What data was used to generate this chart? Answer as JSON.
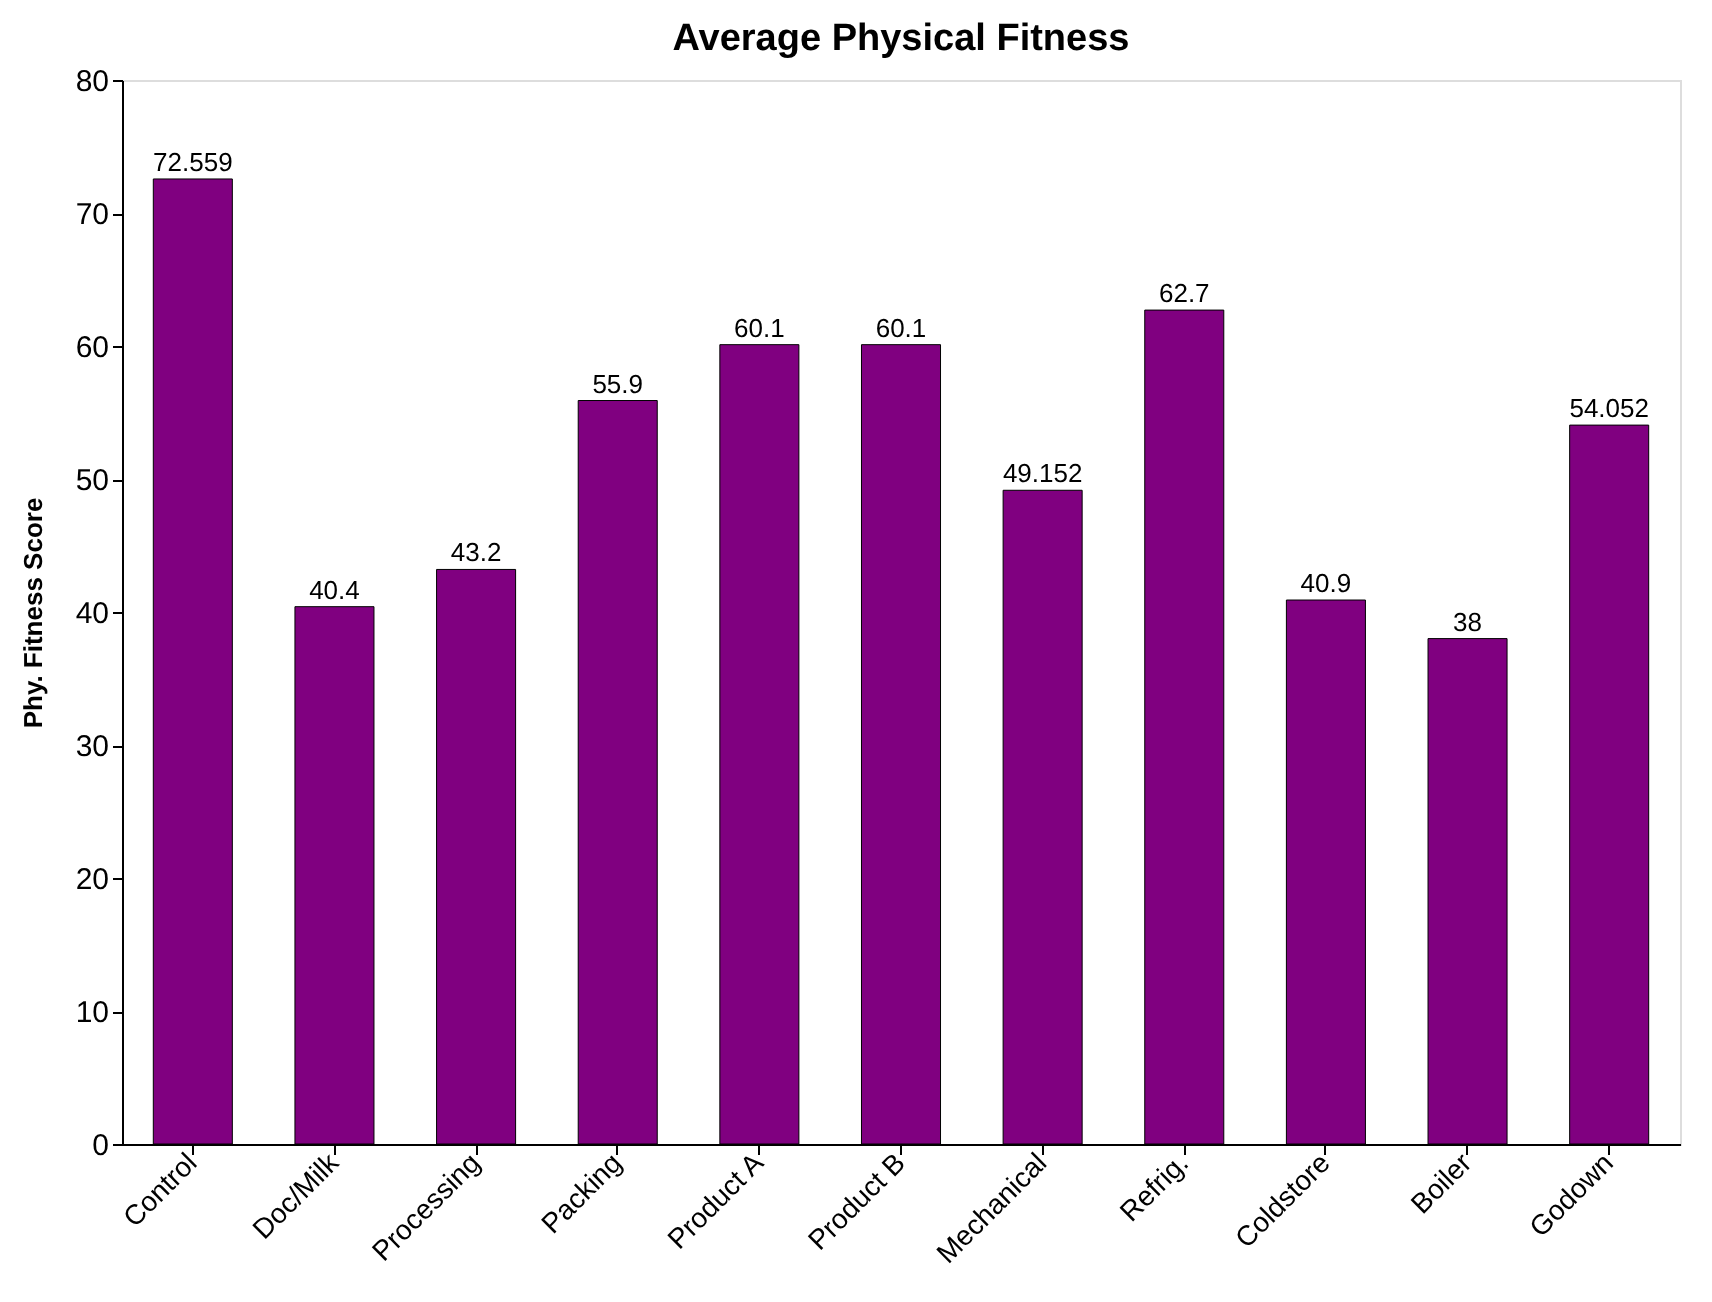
{
  "chart_data": {
    "type": "bar",
    "title": "Average Physical Fitness",
    "ylabel": "Phy. Fitness Score",
    "categories": [
      "Control",
      "Doc/Milk",
      "Processing",
      "Packing",
      "Product A",
      "Product B",
      "Mechanical",
      "Refrig.",
      "Coldstore",
      "Boiler",
      "Godown"
    ],
    "values": [
      72.559,
      40.4,
      43.2,
      55.9,
      60.1,
      60.1,
      49.152,
      62.7,
      40.9,
      38,
      54.052
    ],
    "color": "#800080",
    "ylim": [
      0,
      80
    ],
    "yticks": [
      0,
      10,
      20,
      30,
      40,
      50,
      60,
      70,
      80
    ],
    "grid": false,
    "data_labels": true
  }
}
